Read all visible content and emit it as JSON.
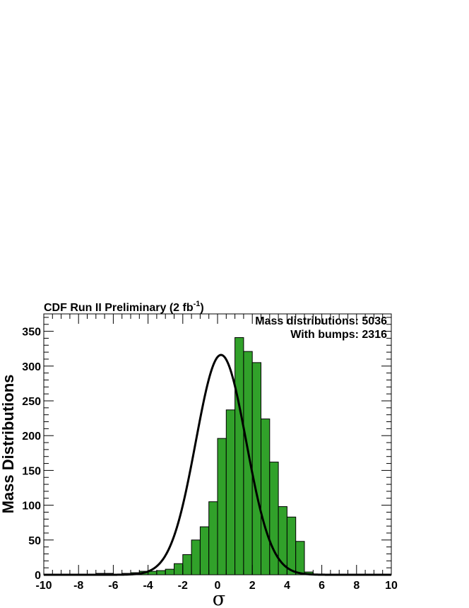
{
  "header": {
    "title_main": "CDF Run II Preliminary (2 fb",
    "title_sup": "-1",
    "title_close": ")"
  },
  "stats": {
    "line1": "Mass distributions: 5036",
    "line2": "With bumps: 2316"
  },
  "colors": {
    "histogram_fill": "#31a12a",
    "curve": "#000000"
  },
  "chart_data": {
    "type": "bar",
    "xlabel": "σ",
    "ylabel": "Mass Distributions",
    "xlim": [
      -10,
      10
    ],
    "ylim": [
      0,
      375
    ],
    "x_ticks": [
      -10,
      -8,
      -6,
      -4,
      -2,
      0,
      2,
      4,
      6,
      8,
      10
    ],
    "x_tick_labels": [
      "-10",
      "-8",
      "-6",
      "-4",
      "-2",
      "0",
      "2",
      "4",
      "6",
      "8",
      "10"
    ],
    "y_ticks": [
      0,
      50,
      100,
      150,
      200,
      250,
      300,
      350
    ],
    "y_tick_labels": [
      "0",
      "50",
      "100",
      "150",
      "200",
      "250",
      "300",
      "350"
    ],
    "bin_width": 0.5,
    "bin_edges_start": -7.0,
    "bins": [
      {
        "x0": -7.0,
        "value": 2
      },
      {
        "x0": -6.5,
        "value": 2
      },
      {
        "x0": -6.0,
        "value": 1
      },
      {
        "x0": -5.5,
        "value": 2
      },
      {
        "x0": -5.0,
        "value": 3
      },
      {
        "x0": -4.5,
        "value": 5
      },
      {
        "x0": -4.0,
        "value": 5
      },
      {
        "x0": -3.5,
        "value": 6
      },
      {
        "x0": -3.0,
        "value": 8
      },
      {
        "x0": -2.5,
        "value": 16
      },
      {
        "x0": -2.0,
        "value": 29
      },
      {
        "x0": -1.5,
        "value": 50
      },
      {
        "x0": -1.0,
        "value": 69
      },
      {
        "x0": -0.5,
        "value": 105
      },
      {
        "x0": 0.0,
        "value": 196
      },
      {
        "x0": 0.5,
        "value": 237
      },
      {
        "x0": 1.0,
        "value": 341
      },
      {
        "x0": 1.5,
        "value": 321
      },
      {
        "x0": 2.0,
        "value": 305
      },
      {
        "x0": 2.5,
        "value": 224
      },
      {
        "x0": 3.0,
        "value": 162
      },
      {
        "x0": 3.5,
        "value": 98
      },
      {
        "x0": 4.0,
        "value": 83
      },
      {
        "x0": 4.5,
        "value": 48
      },
      {
        "x0": 5.0,
        "value": 4
      }
    ],
    "curve": {
      "type": "gaussian",
      "peak": 316,
      "mean": 0.2,
      "sigma": 1.45
    }
  }
}
